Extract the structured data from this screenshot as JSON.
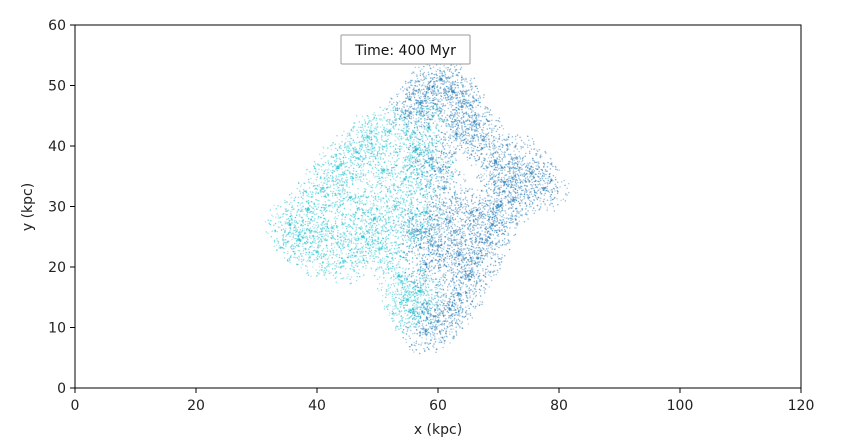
{
  "chart_data": {
    "type": "scatter",
    "xlabel": "x (kpc)",
    "ylabel": "y (kpc)",
    "xlim": [
      0,
      120
    ],
    "ylim": [
      0,
      60
    ],
    "x_ticks": [
      "0",
      "20",
      "40",
      "60",
      "80",
      "100",
      "120"
    ],
    "y_ticks": [
      "0",
      "10",
      "20",
      "30",
      "40",
      "50",
      "60"
    ],
    "annotation": "Time: 400 Myr",
    "grid": false,
    "series": [
      {
        "color": "#17becf",
        "description_points": [
          [
            35.5,
            27.0
          ],
          [
            37.0,
            24.5
          ],
          [
            38.5,
            29.5
          ],
          [
            40.0,
            22.5
          ],
          [
            41.0,
            33.0
          ],
          [
            42.5,
            26.5
          ],
          [
            43.5,
            36.5
          ],
          [
            44.5,
            21.0
          ],
          [
            45.5,
            31.5
          ],
          [
            46.5,
            39.0
          ],
          [
            47.5,
            25.0
          ],
          [
            48.5,
            41.5
          ],
          [
            49.5,
            28.0
          ],
          [
            50.5,
            23.0
          ],
          [
            51.0,
            36.0
          ],
          [
            52.0,
            42.5
          ],
          [
            53.0,
            30.0
          ],
          [
            53.5,
            18.5
          ],
          [
            54.5,
            34.5
          ],
          [
            55.0,
            14.5
          ],
          [
            55.5,
            25.5
          ],
          [
            56.0,
            12.5
          ],
          [
            56.5,
            39.5
          ],
          [
            57.0,
            16.0
          ],
          [
            58.0,
            29.0
          ],
          [
            58.5,
            43.0
          ],
          [
            59.0,
            36.5
          ]
        ]
      },
      {
        "color": "#1f77b4",
        "description_points": [
          [
            55.5,
            45.5
          ],
          [
            57.0,
            47.0
          ],
          [
            58.5,
            49.5
          ],
          [
            60.5,
            51.0
          ],
          [
            62.5,
            49.0
          ],
          [
            64.0,
            46.5
          ],
          [
            66.0,
            44.0
          ],
          [
            67.5,
            41.0
          ],
          [
            69.5,
            37.5
          ],
          [
            71.0,
            34.0
          ],
          [
            72.5,
            31.0
          ],
          [
            73.0,
            38.0
          ],
          [
            75.5,
            35.5
          ],
          [
            77.5,
            33.0
          ],
          [
            70.0,
            30.0
          ],
          [
            69.0,
            27.0
          ],
          [
            68.0,
            24.5
          ],
          [
            66.5,
            21.5
          ],
          [
            65.0,
            18.5
          ],
          [
            63.5,
            15.5
          ],
          [
            62.0,
            13.0
          ],
          [
            60.0,
            11.0
          ],
          [
            58.0,
            9.5
          ],
          [
            56.5,
            26.0
          ],
          [
            58.0,
            20.5
          ],
          [
            60.0,
            23.5
          ],
          [
            62.0,
            27.5
          ],
          [
            63.5,
            22.0
          ],
          [
            65.5,
            29.0
          ],
          [
            61.0,
            33.0
          ],
          [
            59.0,
            38.0
          ],
          [
            63.0,
            42.0
          ]
        ]
      }
    ]
  }
}
